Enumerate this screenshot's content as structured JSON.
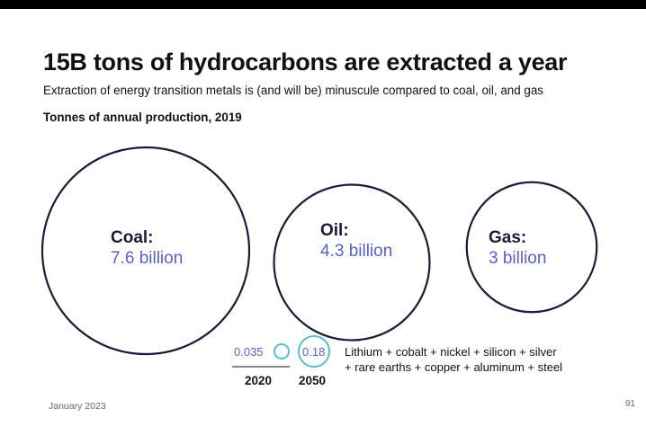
{
  "title": "15B tons of hydrocarbons are extracted a year",
  "subtitle": "Extraction of energy transition metals is (and will be) minuscule compared to coal, oil, and gas",
  "chart_label": "Tonnes of annual production, 2019",
  "footer": {
    "date": "January 2023",
    "page": "91"
  },
  "colors": {
    "hydrocarbon_circle": "#1b1b3a",
    "value_text": "#5a5fc7",
    "metals_circle": "#5bbfc6"
  },
  "chart_data": {
    "type": "bubble",
    "title": "Tonnes of annual production, 2019",
    "unit": "tonnes",
    "hydrocarbons": [
      {
        "label": "Coal:",
        "value_text": "7.6 billion",
        "value": 7.6
      },
      {
        "label": "Oil:",
        "value_text": "4.3 billion",
        "value": 4.3
      },
      {
        "label": "Gas:",
        "value_text": "3 billion",
        "value": 3.0
      }
    ],
    "metals": [
      {
        "year": "2020",
        "value_text": "0.035",
        "value": 0.035
      },
      {
        "year": "2050",
        "value_text": "0.18",
        "value": 0.18
      }
    ],
    "metals_description": [
      "Lithium + cobalt + nickel + silicon + silver",
      "+ rare earths + copper + aluminum + steel"
    ]
  }
}
